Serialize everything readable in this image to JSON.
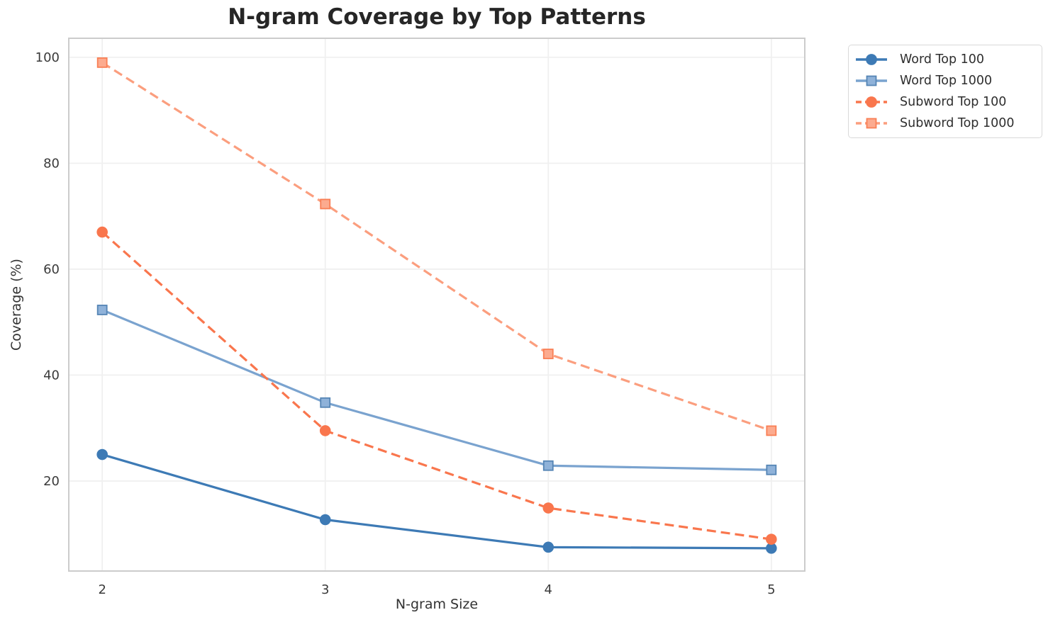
{
  "chart_data": {
    "type": "line",
    "title": "N-gram Coverage by Top Patterns",
    "xlabel": "N-gram Size",
    "ylabel": "Coverage (%)",
    "x": [
      2,
      3,
      4,
      5
    ],
    "x_ticks": [
      "2",
      "3",
      "4",
      "5"
    ],
    "y_ticks": [
      20,
      40,
      60,
      80,
      100
    ],
    "xlim": [
      1.85,
      5.15
    ],
    "ylim": [
      3.0,
      103.6
    ],
    "grid": true,
    "legend_position": "outside-upper-right",
    "series": [
      {
        "name": "Word Top 100",
        "values": [
          25.0,
          12.7,
          7.5,
          7.3
        ],
        "color": "#3d7ab5",
        "marker": "circle",
        "marker_fill": "#3d7ab5",
        "marker_edge": "#3d7ab5",
        "dashed": false
      },
      {
        "name": "Word Top 1000",
        "values": [
          52.3,
          34.8,
          22.9,
          22.1
        ],
        "color": "#7aa3cf",
        "marker": "square",
        "marker_fill": "#8fb2d9",
        "marker_edge": "#5585b5",
        "dashed": false
      },
      {
        "name": "Subword Top 100",
        "values": [
          67.0,
          29.5,
          14.9,
          9.0
        ],
        "color": "#f9764d",
        "marker": "circle",
        "marker_fill": "#f9764d",
        "marker_edge": "#f9764d",
        "dashed": true
      },
      {
        "name": "Subword Top 1000",
        "values": [
          99.0,
          72.3,
          44.0,
          29.5
        ],
        "color": "#fb9e7e",
        "marker": "square",
        "marker_fill": "#fcab8f",
        "marker_edge": "#f97f55",
        "dashed": true
      }
    ],
    "colors": {
      "grid": "#f0f0f0",
      "spine": "#cccccc",
      "tick_text": "#3a3a3a",
      "title_text": "#262626",
      "background": "#ffffff"
    }
  }
}
